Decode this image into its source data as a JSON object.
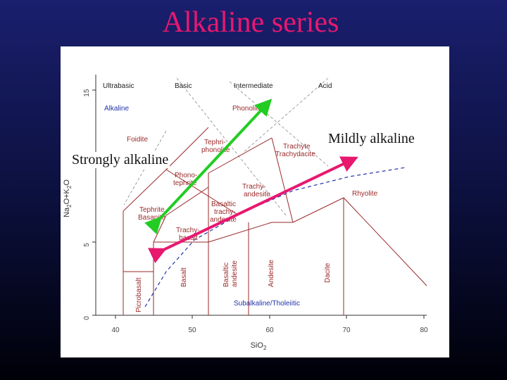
{
  "slide": {
    "title": "Alkaline series"
  },
  "diagram": {
    "axis": {
      "x_label": "SiO",
      "x_sub": "2",
      "y_label": "Na",
      "y_sub": "2",
      "y_label_tail": "O+K",
      "y_sub2": "2",
      "y_label_end": "O",
      "x_ticks": [
        "40",
        "50",
        "60",
        "70",
        "80"
      ],
      "y_ticks": [
        "0",
        "5",
        "15"
      ]
    },
    "headers": [
      "Ultrabasic",
      "Basic",
      "Intermediate",
      "Acid"
    ],
    "fields": {
      "alkaline": "Alkaline",
      "phonolite": "Phonolite",
      "foidite": "Foidite",
      "tephriphonolite_1": "Tephri-",
      "tephriphonolite_2": "phonolite",
      "trachyte_1": "Trachyte",
      "trachyte_2": "Trachydacite",
      "phonotephrite_1": "Phono-",
      "phonotephrite_2": "tephrite",
      "trachyandesite_1": "Trachy-",
      "trachyandesite_2": "andesite",
      "rhyolite": "Rhyolite",
      "tephrite_1": "Tephrite",
      "tephrite_2": "Basanite",
      "btandesite_1": "Basaltic",
      "btandesite_2": "trachy-",
      "btandesite_3": "andesite",
      "trachybasalt_1": "Trachy-",
      "trachybasalt_2": "basalt",
      "picrobasalt": "Picrobasalt",
      "basalt": "Basalt",
      "basaltic_andesite_1": "Basaltic",
      "basaltic_andesite_2": "andesite",
      "andesite": "Andesite",
      "dacite": "Dacite",
      "subalkaline": "Subalkaline/Tholeiitic"
    },
    "callouts": {
      "strong": "Strongly alkaline",
      "mild": "Mildly alkaline"
    },
    "arrows": {
      "strong_color": "#22cc22",
      "mild_color": "#e8186f"
    }
  }
}
